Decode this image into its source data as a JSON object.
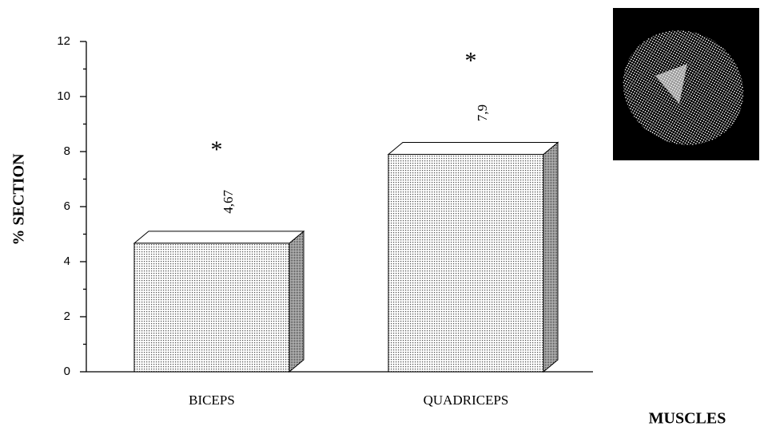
{
  "chart_data": {
    "type": "bar",
    "y_label": "% SECTION",
    "x_label": "MUSCLES",
    "categories": [
      "BICEPS",
      "QUADRICEPS"
    ],
    "values": [
      4.67,
      7.9
    ],
    "value_labels": [
      "4,67",
      "7,9"
    ],
    "annotations": [
      "*",
      "*"
    ],
    "ylim": [
      0,
      12
    ],
    "yticks": [
      0,
      2,
      4,
      6,
      8,
      10,
      12
    ],
    "yminorticks": [
      1,
      3,
      5,
      7,
      9,
      11
    ]
  }
}
